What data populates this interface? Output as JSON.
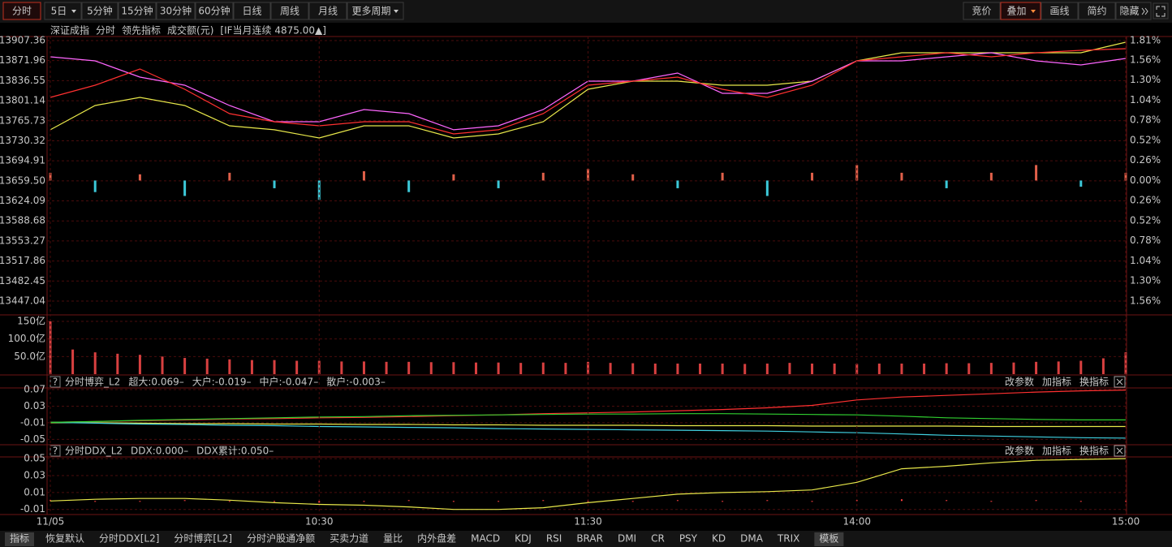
{
  "toolbar": {
    "tabs": [
      "分时",
      "5日",
      "5分钟",
      "15分钟",
      "30分钟",
      "60分钟",
      "日线",
      "周线",
      "月线",
      "更多周期"
    ],
    "right_buttons": [
      "竞价",
      "叠加",
      "画线",
      "简约",
      "隐藏"
    ]
  },
  "chart_data": [
    {
      "type": "line",
      "title": "深证成指",
      "subtitle": "分时",
      "x": [
        0,
        10,
        20,
        30,
        40,
        50,
        60,
        70,
        80,
        90,
        100,
        110,
        120,
        130,
        140,
        150,
        160,
        170,
        180,
        190,
        200,
        210,
        220,
        230,
        240
      ],
      "xlim": [
        0,
        240
      ],
      "ylim": [
        13447.04,
        13907.36
      ],
      "yticks": [
        13907.36,
        13871.96,
        13836.55,
        13801.14,
        13765.73,
        13730.32,
        13694.91,
        {
          "value": 13659.5,
          "label": "13659.50"
        },
        13624.09,
        13588.68,
        13553.27,
        13517.86,
        13482.45,
        13447.04
      ],
      "y2lim": [
        -1.56,
        1.81
      ],
      "y2ticks": [
        {
          "value": 1.81,
          "label": "1.81%"
        },
        {
          "value": 1.56,
          "label": "1.56%"
        },
        {
          "value": 1.3,
          "label": "1.30%"
        },
        {
          "value": 1.04,
          "label": "1.04%"
        },
        {
          "value": 0.78,
          "label": "0.78%"
        },
        {
          "value": 0.52,
          "label": "0.52%"
        },
        {
          "value": 0.26,
          "label": "0.26%"
        },
        {
          "value": 0.0,
          "label": "0.00%"
        },
        {
          "value": -0.26,
          "label": "0.26%"
        },
        {
          "value": -0.52,
          "label": "0.52%"
        },
        {
          "value": -0.78,
          "label": "0.78%"
        },
        {
          "value": -1.04,
          "label": "1.04%"
        },
        {
          "value": -1.3,
          "label": "1.30%"
        },
        {
          "value": -1.56,
          "label": "1.56%"
        }
      ],
      "grid": true,
      "series": [
        {
          "name": "领先指标",
          "color": "#e8e84a",
          "values": [
            13749.7,
            13792.7,
            13807.0,
            13792.7,
            13756.8,
            13749.7,
            13735.3,
            13756.8,
            13756.8,
            13735.3,
            13742.5,
            13764.0,
            13821.3,
            13835.7,
            13835.7,
            13828.5,
            13828.5,
            13835.7,
            13871.5,
            13885.9,
            13885.9,
            13885.9,
            13885.9,
            13885.9,
            13904.5
          ]
        },
        {
          "name": "[IF当月连续 4875.00▲]",
          "color": "#ff66ff",
          "values": [
            13878.7,
            13871.5,
            13842.9,
            13828.5,
            13792.7,
            13764.0,
            13764.0,
            13785.5,
            13778.3,
            13749.7,
            13756.8,
            13785.5,
            13835.7,
            13835.7,
            13850.0,
            13814.2,
            13814.2,
            13835.7,
            13871.5,
            13871.5,
            13878.7,
            13885.9,
            13871.5,
            13864.4,
            13875.8
          ]
        },
        {
          "color": "#ff3030",
          "values": [
            13807.0,
            13828.5,
            13857.2,
            13821.3,
            13778.3,
            13764.0,
            13756.8,
            13764.0,
            13764.0,
            13742.5,
            13749.7,
            13778.3,
            13828.5,
            13835.7,
            13842.9,
            13821.3,
            13807.0,
            13828.5,
            13871.5,
            13878.7,
            13885.9,
            13878.7,
            13885.9,
            13890.2,
            13893.0
          ]
        },
        {
          "type": "bar",
          "axis": "y2",
          "color": "#e0604a",
          "down_color": "#3cc8d8",
          "values": [
            0.1,
            -0.15,
            0.08,
            -0.2,
            0.1,
            -0.1,
            -0.25,
            0.12,
            -0.15,
            0.08,
            -0.1,
            0.1,
            0.15,
            0.08,
            -0.1,
            0.1,
            -0.2,
            0.1,
            0.2,
            0.1,
            -0.1,
            0.1,
            0.2,
            -0.08,
            0.1
          ]
        }
      ]
    },
    {
      "type": "bar",
      "title": "成交额(元)",
      "x": [
        0,
        5,
        10,
        15,
        20,
        25,
        30,
        35,
        40,
        45,
        50,
        55,
        60,
        65,
        70,
        75,
        80,
        85,
        90,
        95,
        100,
        105,
        110,
        115,
        120,
        125,
        130,
        135,
        140,
        145,
        150,
        155,
        160,
        165,
        170,
        175,
        180,
        185,
        190,
        195,
        200,
        205,
        210,
        215,
        220,
        225,
        230,
        235,
        240
      ],
      "values": [
        150,
        70,
        62,
        58,
        55,
        50,
        46,
        44,
        42,
        40,
        40,
        38,
        38,
        36,
        36,
        35,
        35,
        34,
        34,
        33,
        33,
        32,
        33,
        32,
        35,
        32,
        31,
        30,
        30,
        30,
        30,
        29,
        30,
        32,
        30,
        30,
        29,
        30,
        30,
        30,
        31,
        31,
        32,
        33,
        35,
        36,
        38,
        45,
        62
      ],
      "color": "#d84040",
      "xlim": [
        0,
        240
      ],
      "ylim": [
        0,
        150
      ],
      "yticks": [
        {
          "value": 150,
          "label": "150亿"
        },
        {
          "value": 100,
          "label": "100.0亿"
        },
        {
          "value": 50,
          "label": "50.0亿"
        }
      ],
      "grid": true
    },
    {
      "type": "line",
      "title": "分时博弈_L2",
      "x": [
        0,
        10,
        20,
        30,
        40,
        50,
        60,
        70,
        80,
        90,
        100,
        110,
        120,
        130,
        140,
        150,
        160,
        170,
        180,
        190,
        200,
        210,
        220,
        230,
        240
      ],
      "xlim": [
        0,
        240
      ],
      "ylim": [
        -0.061,
        0.074
      ],
      "yticks": [
        0.07,
        0.03,
        -0.01,
        -0.05
      ],
      "grid": true,
      "series": [
        {
          "name": "超大:0.069–",
          "color": "#ff3030",
          "values": [
            -0.009,
            -0.007,
            -0.005,
            -0.003,
            -0.001,
            0.0,
            0.002,
            0.003,
            0.005,
            0.007,
            0.009,
            0.012,
            0.014,
            0.016,
            0.019,
            0.022,
            0.026,
            0.032,
            0.045,
            0.052,
            0.056,
            0.06,
            0.064,
            0.067,
            0.069
          ]
        },
        {
          "name": "大户:-0.019–",
          "color": "#e8e84a",
          "values": [
            -0.01,
            -0.01,
            -0.011,
            -0.012,
            -0.012,
            -0.013,
            -0.013,
            -0.014,
            -0.014,
            -0.015,
            -0.015,
            -0.016,
            -0.016,
            -0.016,
            -0.017,
            -0.017,
            -0.017,
            -0.018,
            -0.018,
            -0.018,
            -0.018,
            -0.019,
            -0.019,
            -0.019,
            -0.019
          ]
        },
        {
          "name": "中户:-0.047–",
          "color": "#40d0e0",
          "values": [
            -0.009,
            -0.011,
            -0.013,
            -0.014,
            -0.016,
            -0.017,
            -0.019,
            -0.02,
            -0.021,
            -0.022,
            -0.024,
            -0.025,
            -0.026,
            -0.027,
            -0.028,
            -0.029,
            -0.03,
            -0.032,
            -0.034,
            -0.037,
            -0.04,
            -0.042,
            -0.044,
            -0.046,
            -0.047
          ]
        },
        {
          "name": "散户:-0.003–",
          "color": "#30d030",
          "values": [
            -0.009,
            -0.007,
            -0.004,
            -0.002,
            0.0,
            0.002,
            0.004,
            0.005,
            0.007,
            0.008,
            0.009,
            0.01,
            0.011,
            0.011,
            0.012,
            0.012,
            0.011,
            0.01,
            0.009,
            0.006,
            0.002,
            0.0,
            -0.002,
            -0.003,
            -0.003
          ]
        }
      ]
    },
    {
      "type": "line",
      "title": "分时DDX_L2",
      "x": [
        0,
        10,
        20,
        30,
        40,
        50,
        60,
        70,
        80,
        90,
        100,
        110,
        120,
        130,
        140,
        150,
        160,
        170,
        180,
        190,
        200,
        210,
        220,
        230,
        240
      ],
      "xlim": [
        0,
        240
      ],
      "xticks": [
        {
          "value": 0,
          "label": "11/05"
        },
        {
          "value": 60,
          "label": "10:30"
        },
        {
          "value": 120,
          "label": "11:30"
        },
        {
          "value": 180,
          "label": "14:00"
        },
        {
          "value": 240,
          "label": "15:00"
        }
      ],
      "ylim": [
        -0.016,
        0.052
      ],
      "yticks": [
        0.05,
        0.03,
        0.01,
        -0.01
      ],
      "grid": true,
      "series": [
        {
          "name": "DDX:0.000–",
          "type": "bar",
          "color": "#ff4040",
          "values": [
            0.001,
            -0.001,
            0.0,
            0.001,
            -0.001,
            0.0,
            -0.002,
            0.0,
            0.001,
            -0.001,
            0.0,
            0.001,
            0.0,
            -0.001,
            0.001,
            0.0,
            0.001,
            -0.001,
            0.001,
            0.002,
            0.001,
            0.0,
            0.001,
            -0.001,
            0.0
          ]
        },
        {
          "name": "DDX累计:0.050–",
          "color": "#e8e84a",
          "values": [
            0.0,
            0.002,
            0.003,
            0.003,
            0.001,
            -0.002,
            -0.004,
            -0.005,
            -0.007,
            -0.01,
            -0.01,
            -0.008,
            -0.002,
            0.003,
            0.008,
            0.01,
            0.011,
            0.013,
            0.022,
            0.038,
            0.041,
            0.045,
            0.048,
            0.049,
            0.05
          ]
        }
      ]
    }
  ],
  "panel_buttons": [
    "改参数",
    "加指标",
    "换指标"
  ],
  "bottom_tabs": [
    "指标",
    "恢复默认",
    "分时DDX[L2]",
    "分时博弈[L2]",
    "分时沪股通净额",
    "买卖力道",
    "量比",
    "内外盘差",
    "MACD",
    "KDJ",
    "RSI",
    "BRAR",
    "DMI",
    "CR",
    "PSY",
    "KD",
    "DMA",
    "TRIX",
    "模板"
  ]
}
